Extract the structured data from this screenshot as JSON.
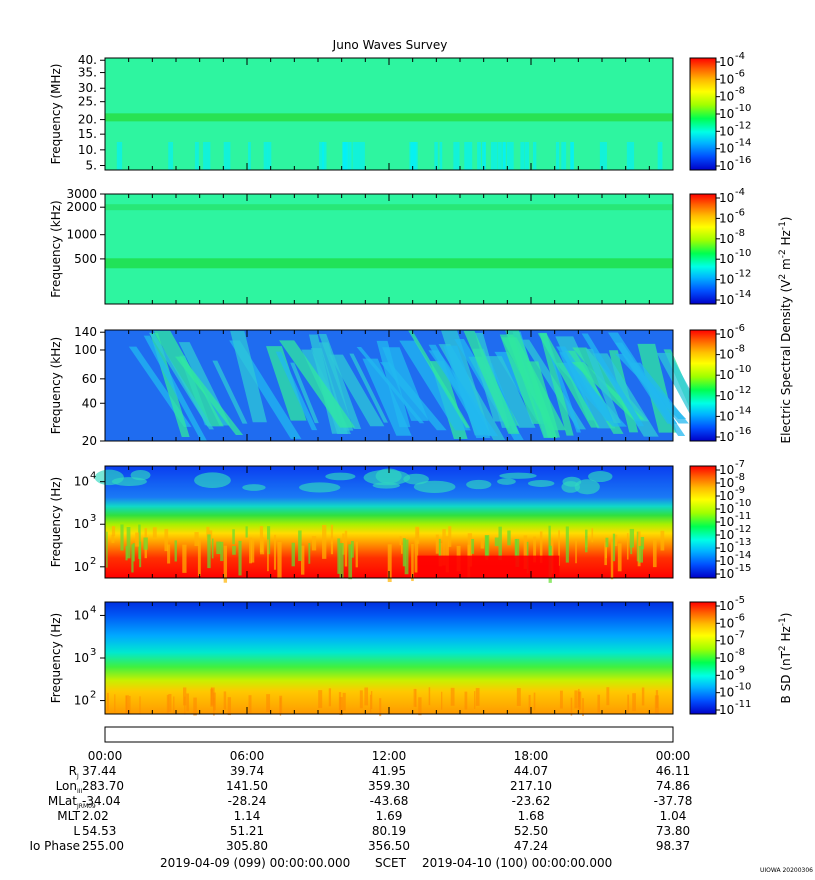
{
  "chart_data": {
    "type": "heatmap",
    "title": "Juno Waves Survey",
    "colorbar_colors": [
      "#0000c8",
      "#0050ff",
      "#00b4ff",
      "#00ffe6",
      "#00ff50",
      "#a0ff00",
      "#ffff00",
      "#ffbe00",
      "#ff6400",
      "#ff0000"
    ],
    "panels": [
      {
        "ylabel": "Frequency (MHz)",
        "yticks": [
          "40.",
          "35.",
          "30.",
          "25.",
          "20.",
          "15.",
          "10.",
          "5."
        ],
        "colorbar": [
          "10",
          "10",
          "10",
          "10",
          "10",
          "10",
          "10"
        ],
        "colorbar_exp": [
          "-4",
          "-6",
          "-8",
          "-10",
          "-12",
          "-14",
          "-16"
        ],
        "background": "#2ef5a0",
        "bands": [
          {
            "freq": "21 MHz",
            "color": "#28e04a"
          }
        ]
      },
      {
        "ylabel": "Frequency (kHz)",
        "yticks": [
          "3000",
          "2000",
          "1000",
          "500"
        ],
        "colorbar": [
          "10",
          "10",
          "10",
          "10",
          "10",
          "10"
        ],
        "colorbar_exp": [
          "-4",
          "-6",
          "-8",
          "-10",
          "-12",
          "-14"
        ],
        "colorbar_label": "Electric Spectral Density (V",
        "colorbar_label_sup": "2",
        "colorbar_label_rest": " m",
        "colorbar_label_sup2": "-2",
        "colorbar_label_end": " Hz",
        "colorbar_label_sup3": "-1",
        "colorbar_label_close": ")",
        "background": "#2ef5a0",
        "bands": [
          {
            "freq": "400 kHz",
            "color": "#20e050"
          },
          {
            "freq": "2000 kHz",
            "color": "#28e672"
          }
        ]
      },
      {
        "ylabel": "Frequency (kHz)",
        "yticks": [
          "140",
          "100",
          "60",
          "40",
          "20"
        ],
        "colorbar": [
          "10",
          "10",
          "10",
          "10",
          "10",
          "10"
        ],
        "colorbar_exp": [
          "-6",
          "-8",
          "-10",
          "-12",
          "-14",
          "-16"
        ],
        "background": "#1f6cf0"
      },
      {
        "ylabel": "Frequency (Hz)",
        "yticks": [
          "10",
          "10",
          "10"
        ],
        "yticks_exp": [
          "4",
          "3",
          "2"
        ],
        "colorbar": [
          "10",
          "10",
          "10",
          "10",
          "10",
          "10",
          "10",
          "10",
          "10"
        ],
        "colorbar_exp": [
          "-7",
          "-8",
          "-9",
          "-10",
          "-11",
          "-12",
          "-13",
          "-14",
          "-15"
        ]
      },
      {
        "ylabel": "Frequency (Hz)",
        "yticks": [
          "10",
          "10",
          "10"
        ],
        "yticks_exp": [
          "4",
          "3",
          "2"
        ],
        "colorbar": [
          "10",
          "10",
          "10",
          "10",
          "10",
          "10",
          "10"
        ],
        "colorbar_exp": [
          "-5",
          "-6",
          "-7",
          "-8",
          "-9",
          "-10",
          "-11"
        ],
        "colorbar_label": "B SD (nT",
        "colorbar_label_sup": "2",
        "colorbar_label_rest": " Hz",
        "colorbar_label_sup2": "-1",
        "colorbar_label_close": ")"
      }
    ],
    "x_ticks": [
      "00:00",
      "06:00",
      "12:00",
      "18:00",
      "00:00"
    ],
    "ephemeris": [
      {
        "label": "R",
        "sub": "J",
        "values": [
          "37.44",
          "39.74",
          "41.95",
          "44.07",
          "46.11"
        ]
      },
      {
        "label": "Lon",
        "sub": "III",
        "values": [
          "283.70",
          "141.50",
          "359.30",
          "217.10",
          "74.86"
        ]
      },
      {
        "label": "MLat",
        "sub": "JRM09",
        "values": [
          "-34.04",
          "-28.24",
          "-43.68",
          "-23.62",
          "-37.78"
        ]
      },
      {
        "label": "MLT",
        "sub": "",
        "values": [
          "2.02",
          "1.14",
          "1.69",
          "1.68",
          "1.04"
        ]
      },
      {
        "label": "L",
        "sub": "",
        "values": [
          "54.53",
          "51.21",
          "80.19",
          "52.50",
          "73.80"
        ]
      },
      {
        "label": "Io Phase",
        "sub": "",
        "values": [
          "255.00",
          "305.80",
          "356.50",
          "47.24",
          "98.37"
        ]
      }
    ],
    "time_start": "2019-04-09 (099) 00:00:00.000",
    "time_label": "SCET",
    "time_end": "2019-04-10 (100) 00:00:00.000",
    "credit": "UIOWA 20200306"
  }
}
